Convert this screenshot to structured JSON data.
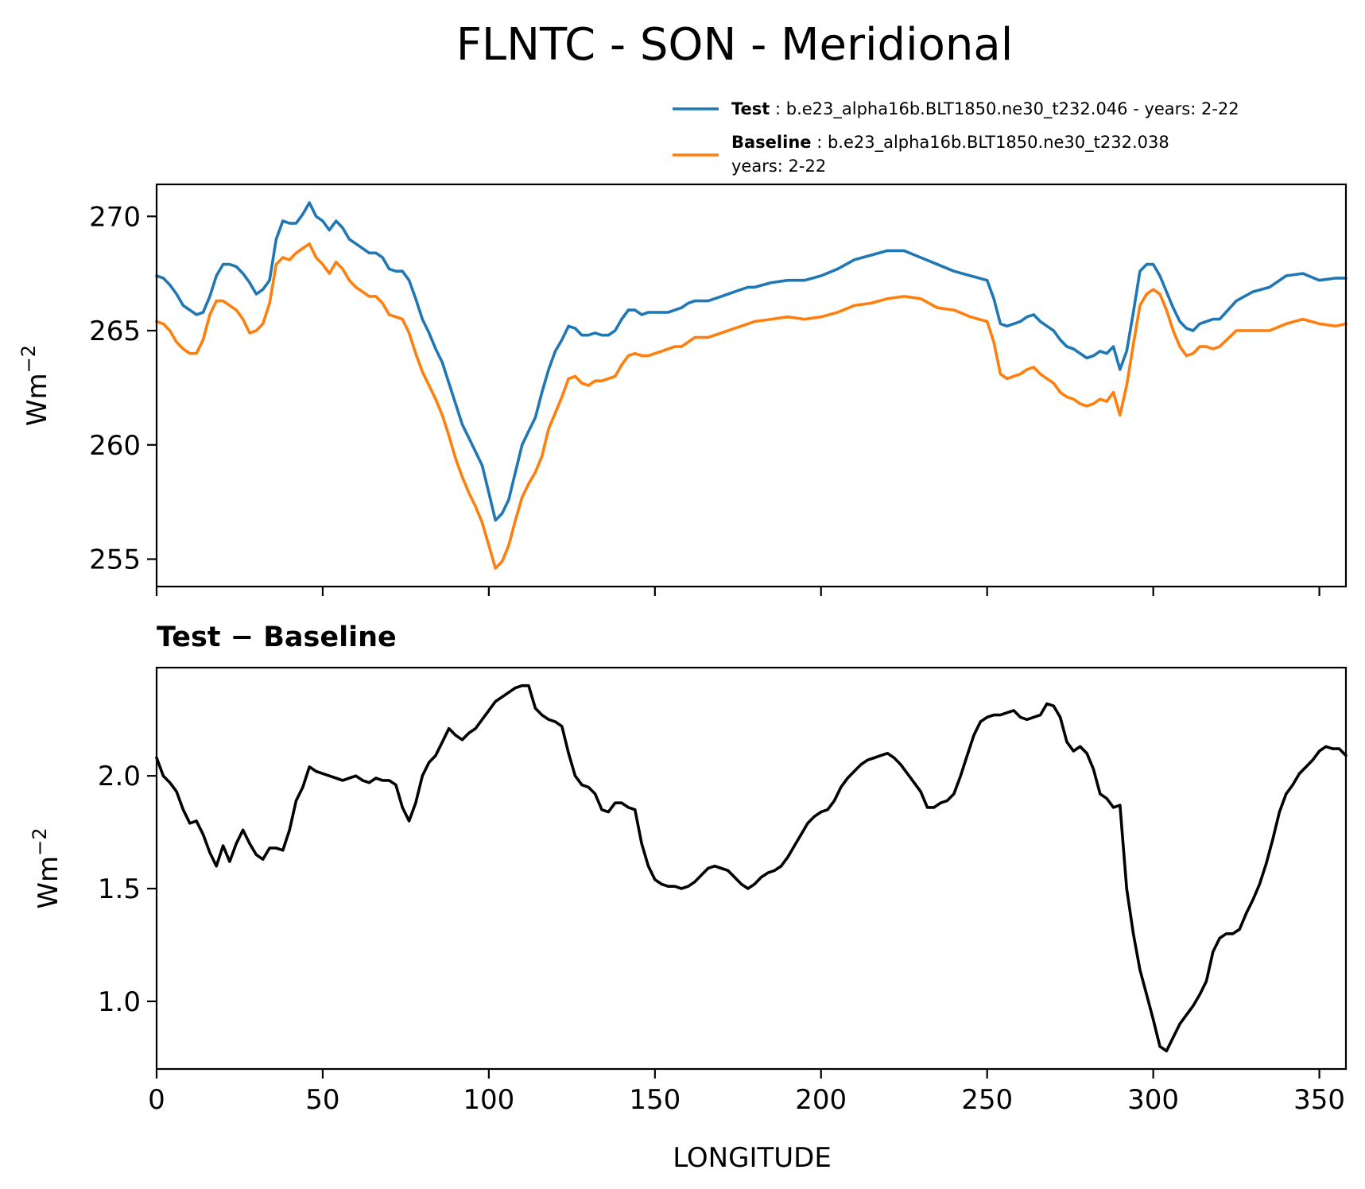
{
  "title": "FLNTC - SON - Meridional",
  "colors": {
    "test": "#1f77b4",
    "baseline": "#ff7f0e",
    "diff": "#000000"
  },
  "legend": {
    "items": [
      {
        "bold": "Test",
        "sep": " : ",
        "text": "b.e23_alpha16b.BLT1850.ne30_t232.046 - years: 2-22",
        "text2": ""
      },
      {
        "bold": "Baseline",
        "sep": " : ",
        "text": "b.e23_alpha16b.BLT1850.ne30_t232.038",
        "text2": "years: 2-22"
      }
    ]
  },
  "chart_data": [
    {
      "type": "line",
      "ylabel_base": "Wm",
      "ylabel_exp": "−2",
      "xlim": [
        0,
        358
      ],
      "ylim": [
        253.8,
        271.4
      ],
      "yticks": [
        255,
        260,
        265,
        270
      ],
      "xticks": [
        0,
        50,
        100,
        150,
        200,
        250,
        300,
        350
      ],
      "series": [
        {
          "name": "Test",
          "x": [
            0,
            2,
            4,
            6,
            8,
            10,
            12,
            14,
            16,
            18,
            20,
            22,
            24,
            26,
            28,
            30,
            32,
            34,
            36,
            38,
            40,
            42,
            44,
            46,
            48,
            50,
            52,
            54,
            56,
            58,
            60,
            62,
            64,
            66,
            68,
            70,
            72,
            74,
            76,
            78,
            80,
            82,
            84,
            86,
            88,
            90,
            92,
            94,
            96,
            98,
            100,
            102,
            104,
            106,
            108,
            110,
            112,
            114,
            116,
            118,
            120,
            122,
            124,
            126,
            128,
            130,
            132,
            134,
            136,
            138,
            140,
            142,
            144,
            146,
            148,
            150,
            152,
            154,
            156,
            158,
            160,
            162,
            164,
            166,
            168,
            170,
            172,
            174,
            176,
            178,
            180,
            185,
            190,
            195,
            200,
            205,
            210,
            215,
            220,
            225,
            230,
            235,
            240,
            245,
            250,
            252,
            254,
            256,
            258,
            260,
            262,
            264,
            266,
            268,
            270,
            272,
            274,
            276,
            278,
            280,
            282,
            284,
            286,
            288,
            290,
            292,
            294,
            296,
            298,
            300,
            302,
            304,
            306,
            308,
            310,
            312,
            314,
            316,
            318,
            320,
            325,
            330,
            335,
            340,
            345,
            350,
            355,
            358
          ],
          "values": [
            267.4,
            267.3,
            267.0,
            266.6,
            266.1,
            265.9,
            265.7,
            265.8,
            266.5,
            267.4,
            267.9,
            267.9,
            267.8,
            267.5,
            267.1,
            266.6,
            266.8,
            267.2,
            269.0,
            269.8,
            269.7,
            269.7,
            270.1,
            270.6,
            270.0,
            269.8,
            269.4,
            269.8,
            269.5,
            269.0,
            268.8,
            268.6,
            268.4,
            268.4,
            268.2,
            267.7,
            267.6,
            267.6,
            267.2,
            266.4,
            265.5,
            264.9,
            264.2,
            263.6,
            262.7,
            261.8,
            260.9,
            260.3,
            259.7,
            259.1,
            257.9,
            256.7,
            257.0,
            257.6,
            258.8,
            260.0,
            260.6,
            261.2,
            262.3,
            263.3,
            264.1,
            264.6,
            265.2,
            265.1,
            264.8,
            264.8,
            264.9,
            264.8,
            264.8,
            265.0,
            265.5,
            265.9,
            265.9,
            265.7,
            265.8,
            265.8,
            265.8,
            265.8,
            265.9,
            266.0,
            266.2,
            266.3,
            266.3,
            266.3,
            266.4,
            266.5,
            266.6,
            266.7,
            266.8,
            266.9,
            266.9,
            267.1,
            267.2,
            267.2,
            267.4,
            267.7,
            268.1,
            268.3,
            268.5,
            268.5,
            268.2,
            267.9,
            267.6,
            267.4,
            267.2,
            266.4,
            265.3,
            265.2,
            265.3,
            265.4,
            265.6,
            265.7,
            265.4,
            265.2,
            265.0,
            264.6,
            264.3,
            264.2,
            264.0,
            263.8,
            263.9,
            264.1,
            264.0,
            264.3,
            263.3,
            264.1,
            265.8,
            267.6,
            267.9,
            267.9,
            267.4,
            266.7,
            266.0,
            265.4,
            265.1,
            265.0,
            265.3,
            265.4,
            265.5,
            265.5,
            266.3,
            266.7,
            266.9,
            267.4,
            267.5,
            267.2,
            267.3,
            267.3
          ]
        },
        {
          "name": "Baseline",
          "x": [
            0,
            2,
            4,
            6,
            8,
            10,
            12,
            14,
            16,
            18,
            20,
            22,
            24,
            26,
            28,
            30,
            32,
            34,
            36,
            38,
            40,
            42,
            44,
            46,
            48,
            50,
            52,
            54,
            56,
            58,
            60,
            62,
            64,
            66,
            68,
            70,
            72,
            74,
            76,
            78,
            80,
            82,
            84,
            86,
            88,
            90,
            92,
            94,
            96,
            98,
            100,
            102,
            104,
            106,
            108,
            110,
            112,
            114,
            116,
            118,
            120,
            122,
            124,
            126,
            128,
            130,
            132,
            134,
            136,
            138,
            140,
            142,
            144,
            146,
            148,
            150,
            152,
            154,
            156,
            158,
            160,
            162,
            164,
            166,
            168,
            170,
            172,
            174,
            176,
            178,
            180,
            185,
            190,
            195,
            200,
            205,
            210,
            215,
            220,
            225,
            230,
            235,
            240,
            245,
            250,
            252,
            254,
            256,
            258,
            260,
            262,
            264,
            266,
            268,
            270,
            272,
            274,
            276,
            278,
            280,
            282,
            284,
            286,
            288,
            290,
            292,
            294,
            296,
            298,
            300,
            302,
            304,
            306,
            308,
            310,
            312,
            314,
            316,
            318,
            320,
            325,
            330,
            335,
            340,
            345,
            350,
            355,
            358
          ],
          "values": [
            265.4,
            265.3,
            265.0,
            264.5,
            264.2,
            264.0,
            264.0,
            264.6,
            265.7,
            266.3,
            266.3,
            266.1,
            265.9,
            265.5,
            264.9,
            265.0,
            265.3,
            266.2,
            267.9,
            268.2,
            268.1,
            268.4,
            268.6,
            268.8,
            268.2,
            267.9,
            267.5,
            268.0,
            267.7,
            267.2,
            266.9,
            266.7,
            266.5,
            266.5,
            266.2,
            265.7,
            265.6,
            265.5,
            264.9,
            264.0,
            263.2,
            262.6,
            262.0,
            261.3,
            260.4,
            259.4,
            258.6,
            257.9,
            257.3,
            256.6,
            255.6,
            254.6,
            254.9,
            255.6,
            256.7,
            257.7,
            258.3,
            258.8,
            259.5,
            260.7,
            261.4,
            262.1,
            262.9,
            263.0,
            262.7,
            262.6,
            262.8,
            262.8,
            262.9,
            263.0,
            263.5,
            263.9,
            264.0,
            263.9,
            263.9,
            264.0,
            264.1,
            264.2,
            264.3,
            264.3,
            264.5,
            264.7,
            264.7,
            264.7,
            264.8,
            264.9,
            265.0,
            265.1,
            265.2,
            265.3,
            265.4,
            265.5,
            265.6,
            265.5,
            265.6,
            265.8,
            266.1,
            266.2,
            266.4,
            266.5,
            266.4,
            266.0,
            265.9,
            265.6,
            265.4,
            264.5,
            263.1,
            262.9,
            263.0,
            263.1,
            263.3,
            263.4,
            263.1,
            262.9,
            262.7,
            262.3,
            262.1,
            262.0,
            261.8,
            261.7,
            261.8,
            262.0,
            261.9,
            262.3,
            261.3,
            262.6,
            264.4,
            266.1,
            266.6,
            266.8,
            266.6,
            265.9,
            265.0,
            264.3,
            263.9,
            264.0,
            264.3,
            264.3,
            264.2,
            264.3,
            265.0,
            265.0,
            265.0,
            265.3,
            265.5,
            265.3,
            265.2,
            265.3
          ]
        }
      ]
    },
    {
      "type": "line",
      "title": "Test − Baseline",
      "ylabel_base": "Wm",
      "ylabel_exp": "−2",
      "xlabel": "LONGITUDE",
      "xlim": [
        0,
        358
      ],
      "ylim": [
        0.7,
        2.48
      ],
      "yticks": [
        1.0,
        1.5,
        2.0
      ],
      "yticklabels": [
        "1.0",
        "1.5",
        "2.0"
      ],
      "xticks": [
        0,
        50,
        100,
        150,
        200,
        250,
        300,
        350
      ],
      "series": [
        {
          "x": [
            0,
            2,
            4,
            6,
            8,
            10,
            12,
            14,
            16,
            18,
            20,
            22,
            24,
            26,
            28,
            30,
            32,
            34,
            36,
            38,
            40,
            42,
            44,
            46,
            48,
            50,
            52,
            54,
            56,
            58,
            60,
            62,
            64,
            66,
            68,
            70,
            72,
            74,
            76,
            78,
            80,
            82,
            84,
            86,
            88,
            90,
            92,
            94,
            96,
            98,
            100,
            102,
            104,
            106,
            108,
            110,
            112,
            114,
            116,
            118,
            120,
            122,
            124,
            126,
            128,
            130,
            132,
            134,
            136,
            138,
            140,
            142,
            144,
            146,
            148,
            150,
            152,
            154,
            156,
            158,
            160,
            162,
            164,
            166,
            168,
            170,
            172,
            174,
            176,
            178,
            180,
            182,
            184,
            186,
            188,
            190,
            192,
            194,
            196,
            198,
            200,
            202,
            204,
            206,
            208,
            210,
            212,
            214,
            216,
            218,
            220,
            222,
            224,
            226,
            228,
            230,
            232,
            234,
            236,
            238,
            240,
            242,
            244,
            246,
            248,
            250,
            252,
            254,
            256,
            258,
            260,
            262,
            264,
            266,
            268,
            270,
            272,
            274,
            276,
            278,
            280,
            282,
            284,
            286,
            288,
            290,
            292,
            294,
            296,
            298,
            300,
            302,
            304,
            306,
            308,
            310,
            312,
            314,
            316,
            318,
            320,
            322,
            324,
            326,
            328,
            330,
            332,
            334,
            336,
            338,
            340,
            342,
            344,
            346,
            348,
            350,
            352,
            354,
            356,
            358
          ],
          "values": [
            2.08,
            2.0,
            1.97,
            1.93,
            1.85,
            1.79,
            1.8,
            1.74,
            1.66,
            1.6,
            1.69,
            1.62,
            1.7,
            1.76,
            1.7,
            1.65,
            1.63,
            1.68,
            1.68,
            1.67,
            1.76,
            1.89,
            1.95,
            2.04,
            2.02,
            2.01,
            2.0,
            1.99,
            1.98,
            1.99,
            2.0,
            1.98,
            1.97,
            1.99,
            1.98,
            1.98,
            1.96,
            1.86,
            1.8,
            1.88,
            2.0,
            2.06,
            2.09,
            2.15,
            2.21,
            2.18,
            2.16,
            2.19,
            2.21,
            2.25,
            2.29,
            2.33,
            2.35,
            2.37,
            2.39,
            2.4,
            2.4,
            2.3,
            2.27,
            2.25,
            2.24,
            2.22,
            2.1,
            2.0,
            1.96,
            1.95,
            1.92,
            1.85,
            1.84,
            1.88,
            1.88,
            1.86,
            1.85,
            1.7,
            1.6,
            1.54,
            1.52,
            1.51,
            1.51,
            1.5,
            1.51,
            1.53,
            1.56,
            1.59,
            1.6,
            1.59,
            1.58,
            1.55,
            1.52,
            1.5,
            1.52,
            1.55,
            1.57,
            1.58,
            1.6,
            1.64,
            1.69,
            1.74,
            1.79,
            1.82,
            1.84,
            1.85,
            1.89,
            1.95,
            1.99,
            2.02,
            2.05,
            2.07,
            2.08,
            2.09,
            2.1,
            2.08,
            2.05,
            2.01,
            1.97,
            1.93,
            1.86,
            1.86,
            1.88,
            1.89,
            1.92,
            2.0,
            2.09,
            2.18,
            2.24,
            2.26,
            2.27,
            2.27,
            2.28,
            2.29,
            2.26,
            2.25,
            2.26,
            2.27,
            2.32,
            2.31,
            2.26,
            2.15,
            2.11,
            2.13,
            2.1,
            2.03,
            1.92,
            1.9,
            1.86,
            1.87,
            1.5,
            1.3,
            1.14,
            1.03,
            0.92,
            0.8,
            0.78,
            0.84,
            0.9,
            0.94,
            0.98,
            1.03,
            1.09,
            1.22,
            1.28,
            1.3,
            1.3,
            1.32,
            1.39,
            1.45,
            1.52,
            1.61,
            1.72,
            1.84,
            1.92,
            1.96,
            2.01,
            2.04,
            2.07,
            2.11,
            2.13,
            2.12,
            2.12,
            2.09
          ]
        }
      ]
    }
  ]
}
